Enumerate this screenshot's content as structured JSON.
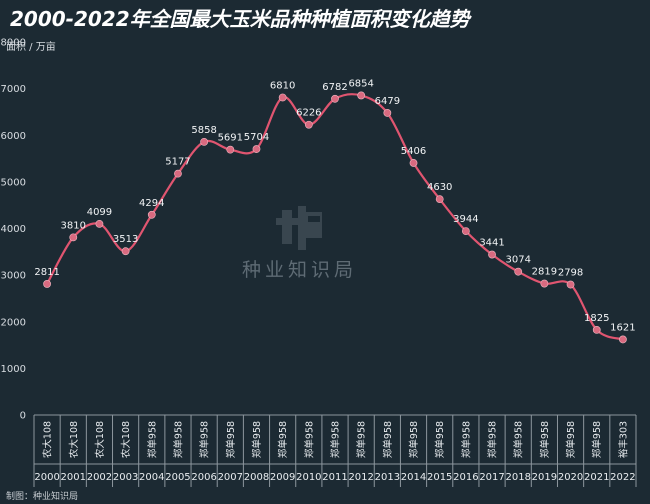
{
  "title": "2000-2022年全国最大玉米品种种植面积变化趋势",
  "unit_label": "面积 / 万亩",
  "watermark": "种业知识局",
  "credit": "制图：种业知识局",
  "colors": {
    "background": "#1c2a33",
    "line": "#e05570",
    "marker": "#d96a80",
    "grid": "#2f3d46"
  },
  "chart_data": {
    "type": "line",
    "title": "2000-2022年全国最大玉米品种种植面积变化趋势",
    "ylabel": "面积 / 万亩",
    "xlabel": "",
    "ylim": [
      0,
      8000
    ],
    "yticks": [
      0,
      1000,
      2000,
      3000,
      4000,
      5000,
      6000,
      7000,
      8000
    ],
    "grid": false,
    "smooth": true,
    "categories": [
      "2000",
      "2001",
      "2002",
      "2003",
      "2004",
      "2005",
      "2006",
      "2007",
      "2008",
      "2009",
      "2010",
      "2011",
      "2012",
      "2013",
      "2014",
      "2015",
      "2016",
      "2017",
      "2018",
      "2019",
      "2020",
      "2021",
      "2022"
    ],
    "varieties": [
      "农大108",
      "农大108",
      "农大108",
      "农大108",
      "郑单958",
      "郑单958",
      "郑单958",
      "郑单958",
      "郑单958",
      "郑单958",
      "郑单958",
      "郑单958",
      "郑单958",
      "郑单958",
      "郑单958",
      "郑单958",
      "郑单958",
      "郑单958",
      "郑单958",
      "郑单958",
      "郑单958",
      "郑单958",
      "裕丰303"
    ],
    "values": [
      2811,
      3810,
      4099,
      3513,
      4294,
      5177,
      5858,
      5691,
      5704,
      6810,
      6226,
      6782,
      6854,
      6479,
      5406,
      4630,
      3944,
      3441,
      3074,
      2819,
      2798,
      1825,
      1621
    ]
  }
}
